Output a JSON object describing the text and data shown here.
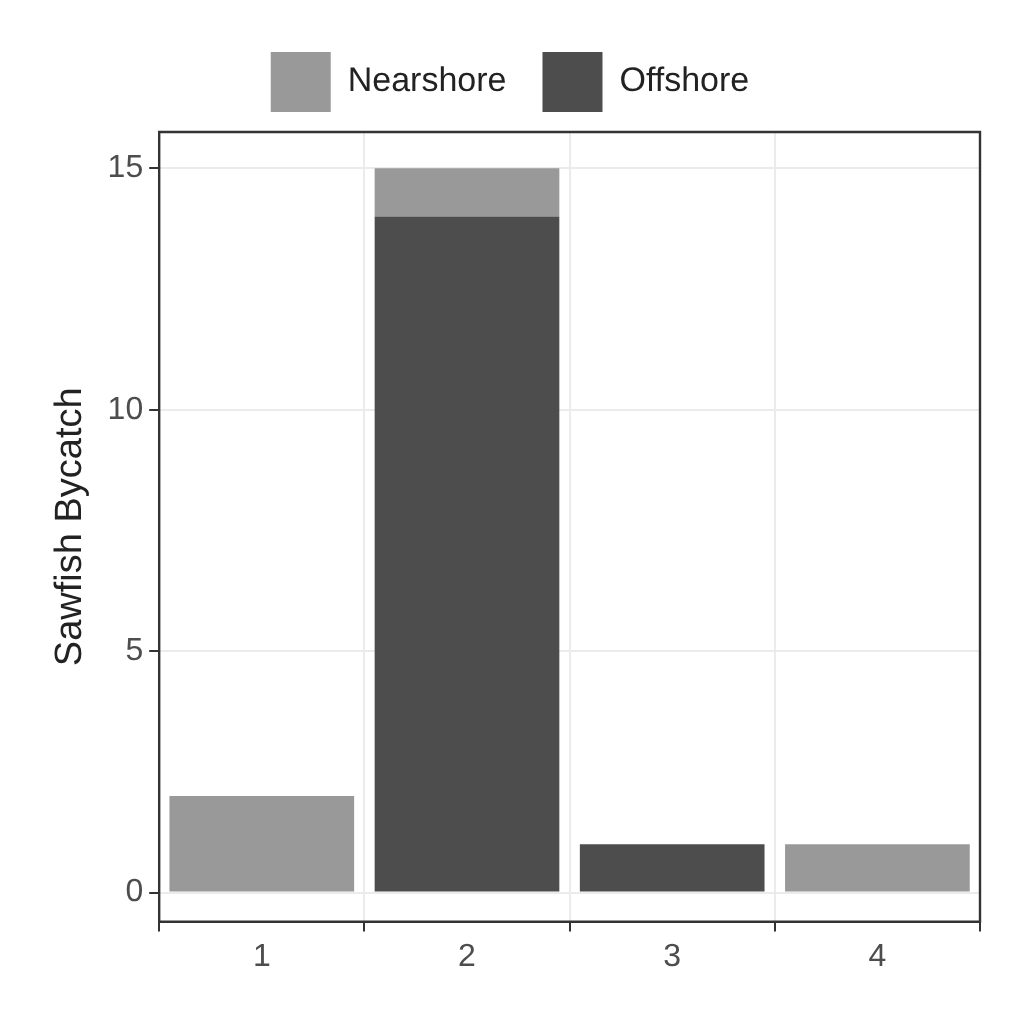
{
  "chart_data": {
    "type": "bar",
    "ylabel": "Sawfish Bycatch",
    "categories": [
      "1",
      "2",
      "3",
      "4"
    ],
    "stacked": true,
    "series": [
      {
        "name": "Offshore",
        "color": "#4d4d4d",
        "values": [
          0,
          14,
          1,
          0
        ]
      },
      {
        "name": "Nearshore",
        "color": "#999999",
        "values": [
          2,
          1,
          0,
          1
        ]
      }
    ],
    "ylim": [
      -0.6,
      15.75
    ],
    "yticks": [
      0,
      5,
      10,
      15
    ],
    "grid": true,
    "legend": "top"
  }
}
